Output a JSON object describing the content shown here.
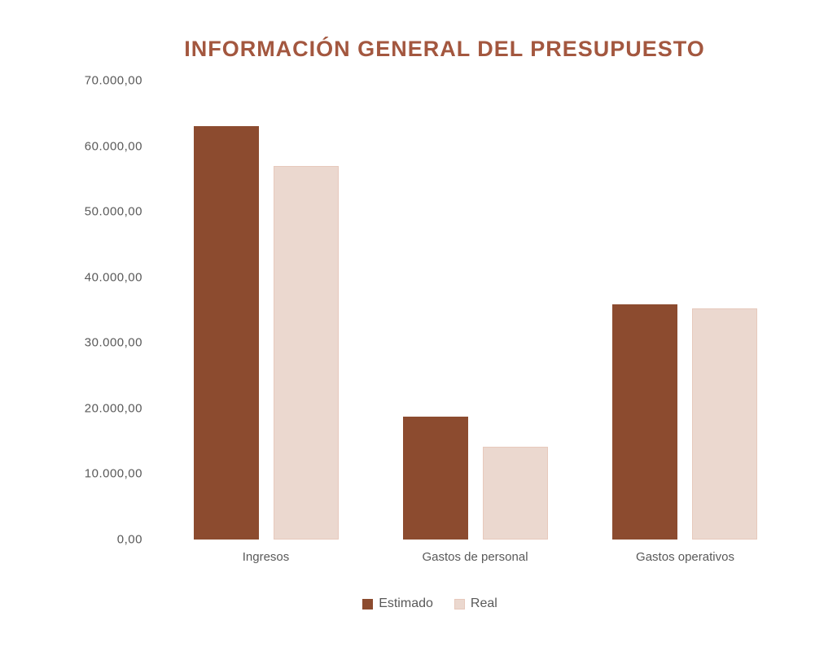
{
  "page": {
    "background": "#ffffff"
  },
  "chart_data": {
    "type": "bar",
    "title": "INFORMACIÓN GENERAL DEL PRESUPUESTO",
    "title_color": "#A3573F",
    "axis_text_color": "#595959",
    "categories": [
      "Ingresos",
      "Gastos de personal",
      "Gastos operativos"
    ],
    "series": [
      {
        "name": "Estimado",
        "color": "#8C4B2F",
        "border": "#8C4B2F",
        "values": [
          63000,
          18700,
          35900
        ]
      },
      {
        "name": "Real",
        "color": "#EBD8CF",
        "border": "#E7C9BC",
        "values": [
          57000,
          14150,
          35300
        ]
      }
    ],
    "xlabel": "",
    "ylabel": "",
    "ylim": [
      0,
      70000
    ],
    "y_ticks": [
      {
        "value": 70000,
        "label": "70.000,00"
      },
      {
        "value": 60000,
        "label": "60.000,00"
      },
      {
        "value": 50000,
        "label": "50.000,00"
      },
      {
        "value": 40000,
        "label": "40.000,00"
      },
      {
        "value": 30000,
        "label": "30.000,00"
      },
      {
        "value": 20000,
        "label": "20.000,00"
      },
      {
        "value": 10000,
        "label": "10.000,00"
      },
      {
        "value": 0,
        "label": "0,00"
      }
    ],
    "grid": false,
    "legend_position": "bottom"
  }
}
